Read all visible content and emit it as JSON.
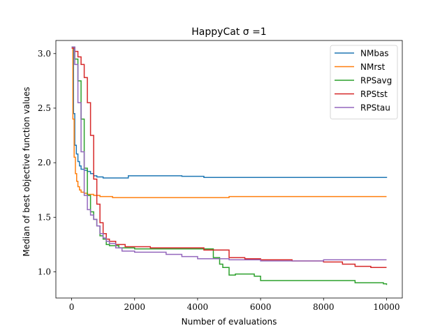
{
  "chart_data": {
    "type": "line",
    "title": "HappyCat σ =1",
    "xlabel": "Number of evaluations",
    "ylabel": "Median of best objective function values",
    "xlim": [
      -500,
      10500
    ],
    "ylim": [
      0.76,
      3.12
    ],
    "xticks": [
      0,
      2000,
      4000,
      6000,
      8000,
      10000
    ],
    "yticks": [
      1.0,
      1.5,
      2.0,
      2.5,
      3.0
    ],
    "xtick_labels": [
      "0",
      "2000",
      "4000",
      "6000",
      "8000",
      "10000"
    ],
    "ytick_labels": [
      "1.0",
      "1.5",
      "2.0",
      "2.5",
      "3.0"
    ],
    "legend_position": "top-right",
    "grid": false,
    "series": [
      {
        "name": "NMbas",
        "color": "#1f77b4",
        "x": [
          0,
          60,
          100,
          150,
          200,
          250,
          300,
          400,
          500,
          600,
          700,
          800,
          900,
          1000,
          1100,
          1500,
          1780,
          1800,
          3500,
          4200,
          10000
        ],
        "y": [
          3.06,
          2.45,
          2.16,
          2.08,
          2.01,
          1.97,
          1.94,
          1.93,
          1.92,
          1.9,
          1.88,
          1.87,
          1.87,
          1.86,
          1.86,
          1.86,
          1.86,
          1.88,
          1.875,
          1.865,
          1.86
        ]
      },
      {
        "name": "NMrst",
        "color": "#ff7f0e",
        "x": [
          0,
          40,
          80,
          120,
          160,
          200,
          250,
          300,
          400,
          500,
          700,
          900,
          1300,
          4900,
          5000,
          10000
        ],
        "y": [
          3.06,
          2.4,
          2.05,
          1.9,
          1.83,
          1.78,
          1.75,
          1.73,
          1.72,
          1.71,
          1.7,
          1.69,
          1.68,
          1.68,
          1.69,
          1.69
        ]
      },
      {
        "name": "RPSavg",
        "color": "#2ca02c",
        "x": [
          0,
          100,
          200,
          300,
          400,
          500,
          600,
          700,
          800,
          900,
          1000,
          1100,
          1200,
          1500,
          2000,
          3000,
          4000,
          4500,
          4700,
          4800,
          5000,
          5200,
          5500,
          5800,
          6000,
          7000,
          8000,
          9000,
          9900,
          10000
        ],
        "y": [
          3.06,
          2.95,
          2.75,
          2.4,
          1.95,
          1.7,
          1.55,
          1.48,
          1.42,
          1.33,
          1.3,
          1.25,
          1.24,
          1.22,
          1.21,
          1.21,
          1.21,
          1.13,
          1.07,
          1.04,
          0.97,
          0.98,
          0.98,
          0.96,
          0.92,
          0.92,
          0.92,
          0.9,
          0.89,
          0.88
        ]
      },
      {
        "name": "RPStst",
        "color": "#d62728",
        "x": [
          0,
          100,
          200,
          300,
          400,
          500,
          600,
          700,
          800,
          900,
          1000,
          1100,
          1200,
          1400,
          1700,
          2500,
          3500,
          4200,
          5000,
          5500,
          6000,
          7000,
          8000,
          8600,
          9000,
          9500,
          10000
        ],
        "y": [
          3.05,
          3.02,
          2.97,
          2.9,
          2.78,
          2.55,
          2.25,
          1.85,
          1.62,
          1.45,
          1.35,
          1.3,
          1.28,
          1.25,
          1.23,
          1.22,
          1.22,
          1.2,
          1.13,
          1.12,
          1.11,
          1.1,
          1.09,
          1.07,
          1.05,
          1.04,
          1.04
        ]
      },
      {
        "name": "RPStau",
        "color": "#9467bd",
        "x": [
          0,
          100,
          200,
          300,
          400,
          500,
          600,
          700,
          800,
          900,
          1000,
          1100,
          1200,
          1400,
          1600,
          2000,
          3000,
          3500,
          4000,
          5000,
          6000,
          8000,
          10000
        ],
        "y": [
          3.06,
          2.9,
          2.55,
          2.1,
          1.7,
          1.57,
          1.52,
          1.48,
          1.42,
          1.35,
          1.31,
          1.28,
          1.26,
          1.22,
          1.19,
          1.18,
          1.16,
          1.14,
          1.12,
          1.11,
          1.1,
          1.11,
          1.11
        ]
      }
    ]
  }
}
